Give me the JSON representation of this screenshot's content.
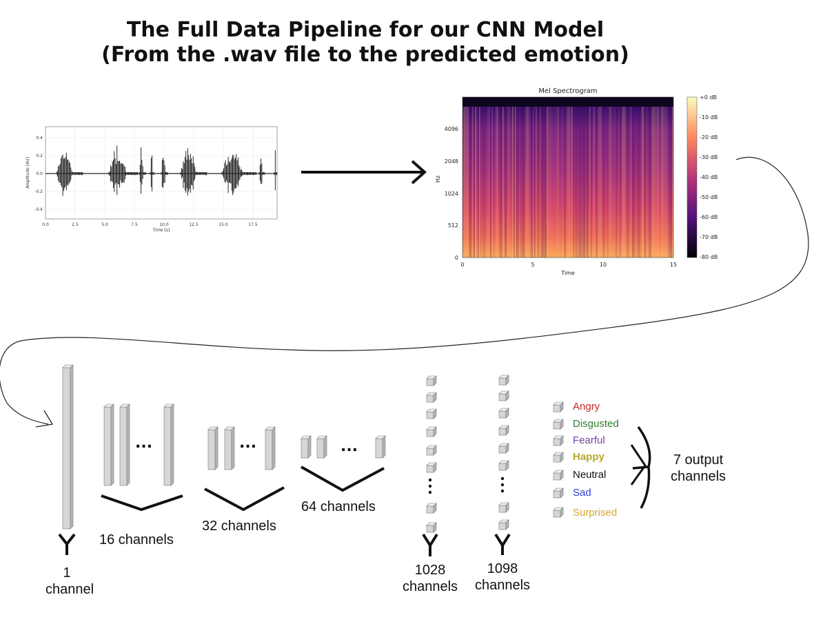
{
  "title": {
    "line1": "The Full Data Pipeline for our CNN Model",
    "line2": "(From the .wav file to the predicted emotion)"
  },
  "waveform": {
    "ylabel": "Amplitude [AU]",
    "xlabel": "Time [s]",
    "yticks": [
      "0.4",
      "0.2",
      "0.0",
      "-0.2",
      "-0.4"
    ],
    "xticks": [
      "0.0",
      "2.5",
      "5.0",
      "7.5",
      "10.0",
      "12.5",
      "15.0",
      "17.5"
    ]
  },
  "spectrogram": {
    "title": "Mel Spectrogram",
    "ylabel": "Hz",
    "xlabel": "Time",
    "yticks": [
      "4096",
      "2048",
      "1024",
      "512",
      "0"
    ],
    "xticks": [
      "0",
      "5",
      "10",
      "15"
    ],
    "colorbar_ticks": [
      "+0 dB",
      "-10 dB",
      "-20 dB",
      "-30 dB",
      "-40 dB",
      "-50 dB",
      "-60 dB",
      "-70 dB",
      "-80 dB"
    ]
  },
  "layers": {
    "l1": [
      "1",
      "channel"
    ],
    "l16": "16 channels",
    "l32": "32 channels",
    "l64": "64 channels",
    "l1028": [
      "1028",
      "channels"
    ],
    "l1098": [
      "1098",
      "channels"
    ],
    "ellipsis": "..."
  },
  "emotions": [
    {
      "label": "Angry",
      "color": "#c62828"
    },
    {
      "label": "Disgusted",
      "color": "#2e7d32"
    },
    {
      "label": "Fearful",
      "color": "#7b3fa0"
    },
    {
      "label": "Happy",
      "color": "#b8a82a"
    },
    {
      "label": "Neutral",
      "color": "#111111"
    },
    {
      "label": "Sad",
      "color": "#2a3fd6"
    },
    {
      "label": "Surprised",
      "color": "#d4a83a"
    }
  ],
  "output": [
    "7 output",
    "channels"
  ]
}
